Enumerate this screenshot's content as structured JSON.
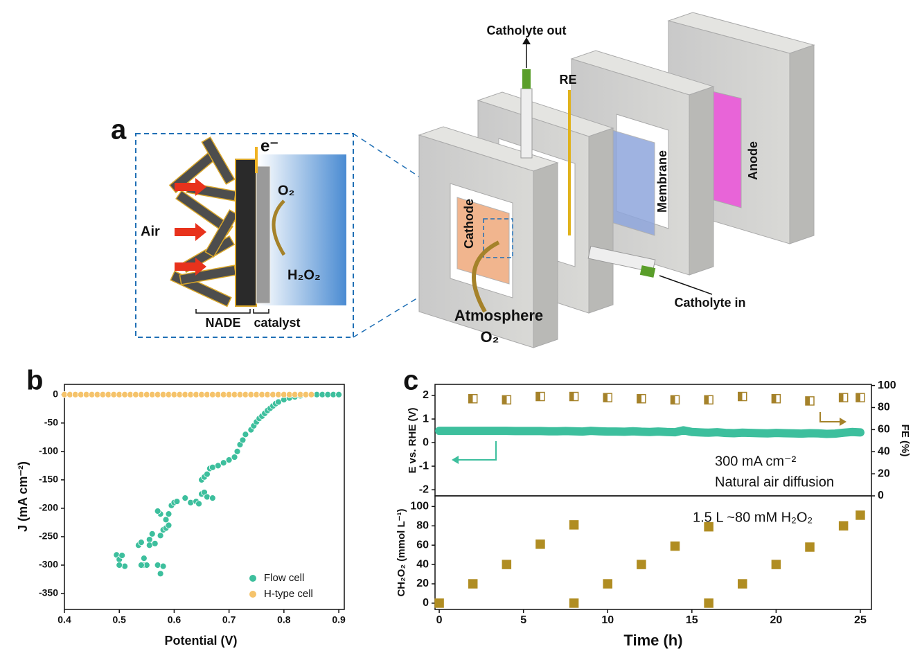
{
  "diagram": {
    "panel_label": "a",
    "electron": "e⁻",
    "oxygen": "O₂",
    "air": "Air",
    "product": "H₂O₂",
    "nade": "NADE",
    "catalyst": "catalyst",
    "catholyte_out": "Catholyte out",
    "reference": "RE",
    "membrane": "Membrane",
    "anode": "Anode",
    "cathode": "Cathode",
    "atmosphere": "Atmosphere",
    "atmosphere_gas": "O₂",
    "catholyte_in": "Catholyte in"
  },
  "chart_data": [
    {
      "type": "scatter",
      "panel_label": "b",
      "xlabel": "Potential (V)",
      "ylabel": "J (mA cm⁻²)",
      "xlim": [
        0.4,
        0.91
      ],
      "xticks": [
        0.4,
        0.5,
        0.6,
        0.7,
        0.8,
        0.9
      ],
      "ylim": [
        -378,
        18
      ],
      "yticks": [
        0,
        -50,
        -100,
        -150,
        -200,
        -250,
        -300,
        -350
      ],
      "legend": "lower right",
      "series": [
        {
          "name": "Flow cell",
          "color": "#3dbf9d",
          "x": [
            0.495,
            0.5,
            0.505,
            0.51,
            0.5,
            0.535,
            0.54,
            0.545,
            0.55,
            0.545,
            0.54,
            0.555,
            0.56,
            0.555,
            0.565,
            0.57,
            0.575,
            0.58,
            0.575,
            0.58,
            0.585,
            0.59,
            0.575,
            0.57,
            0.585,
            0.59,
            0.595,
            0.6,
            0.605,
            0.62,
            0.63,
            0.64,
            0.645,
            0.65,
            0.655,
            0.66,
            0.67,
            0.65,
            0.655,
            0.66,
            0.665,
            0.67,
            0.68,
            0.69,
            0.7,
            0.71,
            0.715,
            0.72,
            0.725,
            0.73,
            0.74,
            0.745,
            0.75,
            0.755,
            0.76,
            0.765,
            0.77,
            0.775,
            0.78,
            0.785,
            0.79,
            0.8,
            0.81,
            0.82,
            0.83,
            0.84,
            0.85,
            0.86,
            0.87,
            0.88,
            0.89,
            0.9
          ],
          "values": [
            -282,
            -290,
            -283,
            -302,
            -300,
            -265,
            -260,
            -300,
            -300,
            -288,
            -300,
            -255,
            -245,
            -265,
            -262,
            -300,
            -315,
            -302,
            -248,
            -238,
            -235,
            -230,
            -210,
            -205,
            -220,
            -210,
            -195,
            -190,
            -188,
            -182,
            -190,
            -188,
            -192,
            -175,
            -172,
            -180,
            -182,
            -150,
            -145,
            -140,
            -130,
            -128,
            -125,
            -120,
            -115,
            -110,
            -100,
            -88,
            -80,
            -70,
            -62,
            -55,
            -48,
            -42,
            -38,
            -33,
            -28,
            -24,
            -20,
            -16,
            -13,
            -9,
            -6,
            -4,
            -2,
            -1,
            0,
            0,
            0,
            0,
            0,
            0
          ]
        },
        {
          "name": "H-type cell",
          "color": "#f5c36b",
          "x": [
            0.4,
            0.41,
            0.42,
            0.43,
            0.44,
            0.45,
            0.46,
            0.47,
            0.48,
            0.49,
            0.5,
            0.51,
            0.52,
            0.53,
            0.54,
            0.55,
            0.56,
            0.57,
            0.58,
            0.59,
            0.6,
            0.61,
            0.62,
            0.63,
            0.64,
            0.65,
            0.66,
            0.67,
            0.68,
            0.69,
            0.7,
            0.71,
            0.72,
            0.73,
            0.74,
            0.75,
            0.76,
            0.77,
            0.78,
            0.79,
            0.8,
            0.81,
            0.82,
            0.83,
            0.84,
            0.85
          ],
          "values": [
            0,
            0,
            0,
            0,
            0,
            0,
            0,
            0,
            0,
            0,
            0,
            0,
            0,
            0,
            0,
            0,
            0,
            0,
            0,
            0,
            0,
            0,
            0,
            0,
            0,
            0,
            0,
            0,
            0,
            0,
            0,
            0,
            0,
            0,
            0,
            0,
            0,
            0,
            0,
            0,
            0,
            0,
            0,
            0,
            0,
            0
          ]
        }
      ]
    },
    {
      "type": "combo",
      "panel_label": "c",
      "ylabel": "E vs. RHE (V)",
      "y2label": "FE (%)",
      "xlim": [
        -0.25,
        25.66
      ],
      "ylim": [
        -2.26,
        2.47
      ],
      "yticks": [
        -2,
        -1,
        0,
        1,
        2
      ],
      "y2lim": [
        0,
        101
      ],
      "y2ticks": [
        0,
        20,
        40,
        60,
        80,
        100
      ],
      "annotations": [
        "300 mA cm⁻²",
        "Natural air diffusion"
      ],
      "series": [
        {
          "type": "line",
          "color": "#3dbf9d",
          "x": [
            0,
            0.5,
            1,
            1.5,
            2,
            2.5,
            3,
            3.5,
            4,
            4.5,
            5,
            5.5,
            6,
            6.5,
            7,
            7.5,
            8,
            8.5,
            9,
            9.5,
            10,
            10.5,
            11,
            11.5,
            12,
            12.5,
            13,
            13.5,
            14,
            14.5,
            15,
            15.5,
            16,
            16.5,
            17,
            17.5,
            18,
            18.5,
            19,
            19.5,
            20,
            20.5,
            21,
            21.5,
            22,
            22.5,
            23,
            23.5,
            24,
            24.5,
            25
          ],
          "values": [
            0.5,
            0.5,
            0.5,
            0.5,
            0.5,
            0.5,
            0.5,
            0.5,
            0.5,
            0.49,
            0.49,
            0.49,
            0.49,
            0.48,
            0.48,
            0.49,
            0.48,
            0.47,
            0.5,
            0.48,
            0.47,
            0.47,
            0.46,
            0.48,
            0.46,
            0.45,
            0.47,
            0.45,
            0.44,
            0.52,
            0.45,
            0.43,
            0.42,
            0.44,
            0.41,
            0.4,
            0.42,
            0.41,
            0.4,
            0.39,
            0.41,
            0.4,
            0.39,
            0.38,
            0.4,
            0.39,
            0.37,
            0.38,
            0.42,
            0.45,
            0.43
          ]
        },
        {
          "type": "scatter",
          "marker": "half-square",
          "axis": "y2",
          "color": "#a5822a",
          "x": [
            2,
            4,
            6,
            8,
            10,
            12,
            14,
            16,
            18,
            20,
            22,
            24,
            25
          ],
          "values": [
            88,
            87,
            90,
            90,
            89,
            88,
            87,
            87,
            90,
            88,
            86,
            89,
            89
          ]
        }
      ]
    },
    {
      "type": "scatter",
      "xlabel": "Time (h)",
      "ylabel": "CH₂O₂ (mmol L⁻¹)",
      "xlim": [
        -0.25,
        25.66
      ],
      "xticks": [
        0,
        5,
        10,
        15,
        20,
        25
      ],
      "ylim": [
        -6.5,
        111
      ],
      "yticks": [
        0,
        20,
        40,
        60,
        80,
        100
      ],
      "annotations": [
        "1.5 L ~80 mM H₂O₂"
      ],
      "series": [
        {
          "marker": "square",
          "color": "#b08d22",
          "x": [
            0,
            2,
            4,
            6,
            8,
            8,
            10,
            12,
            14,
            16,
            16,
            18,
            20,
            22,
            24,
            25
          ],
          "values": [
            0,
            20,
            40,
            61,
            81,
            0,
            20,
            40,
            59,
            79,
            0,
            20,
            40,
            58,
            80,
            91
          ]
        }
      ]
    }
  ]
}
